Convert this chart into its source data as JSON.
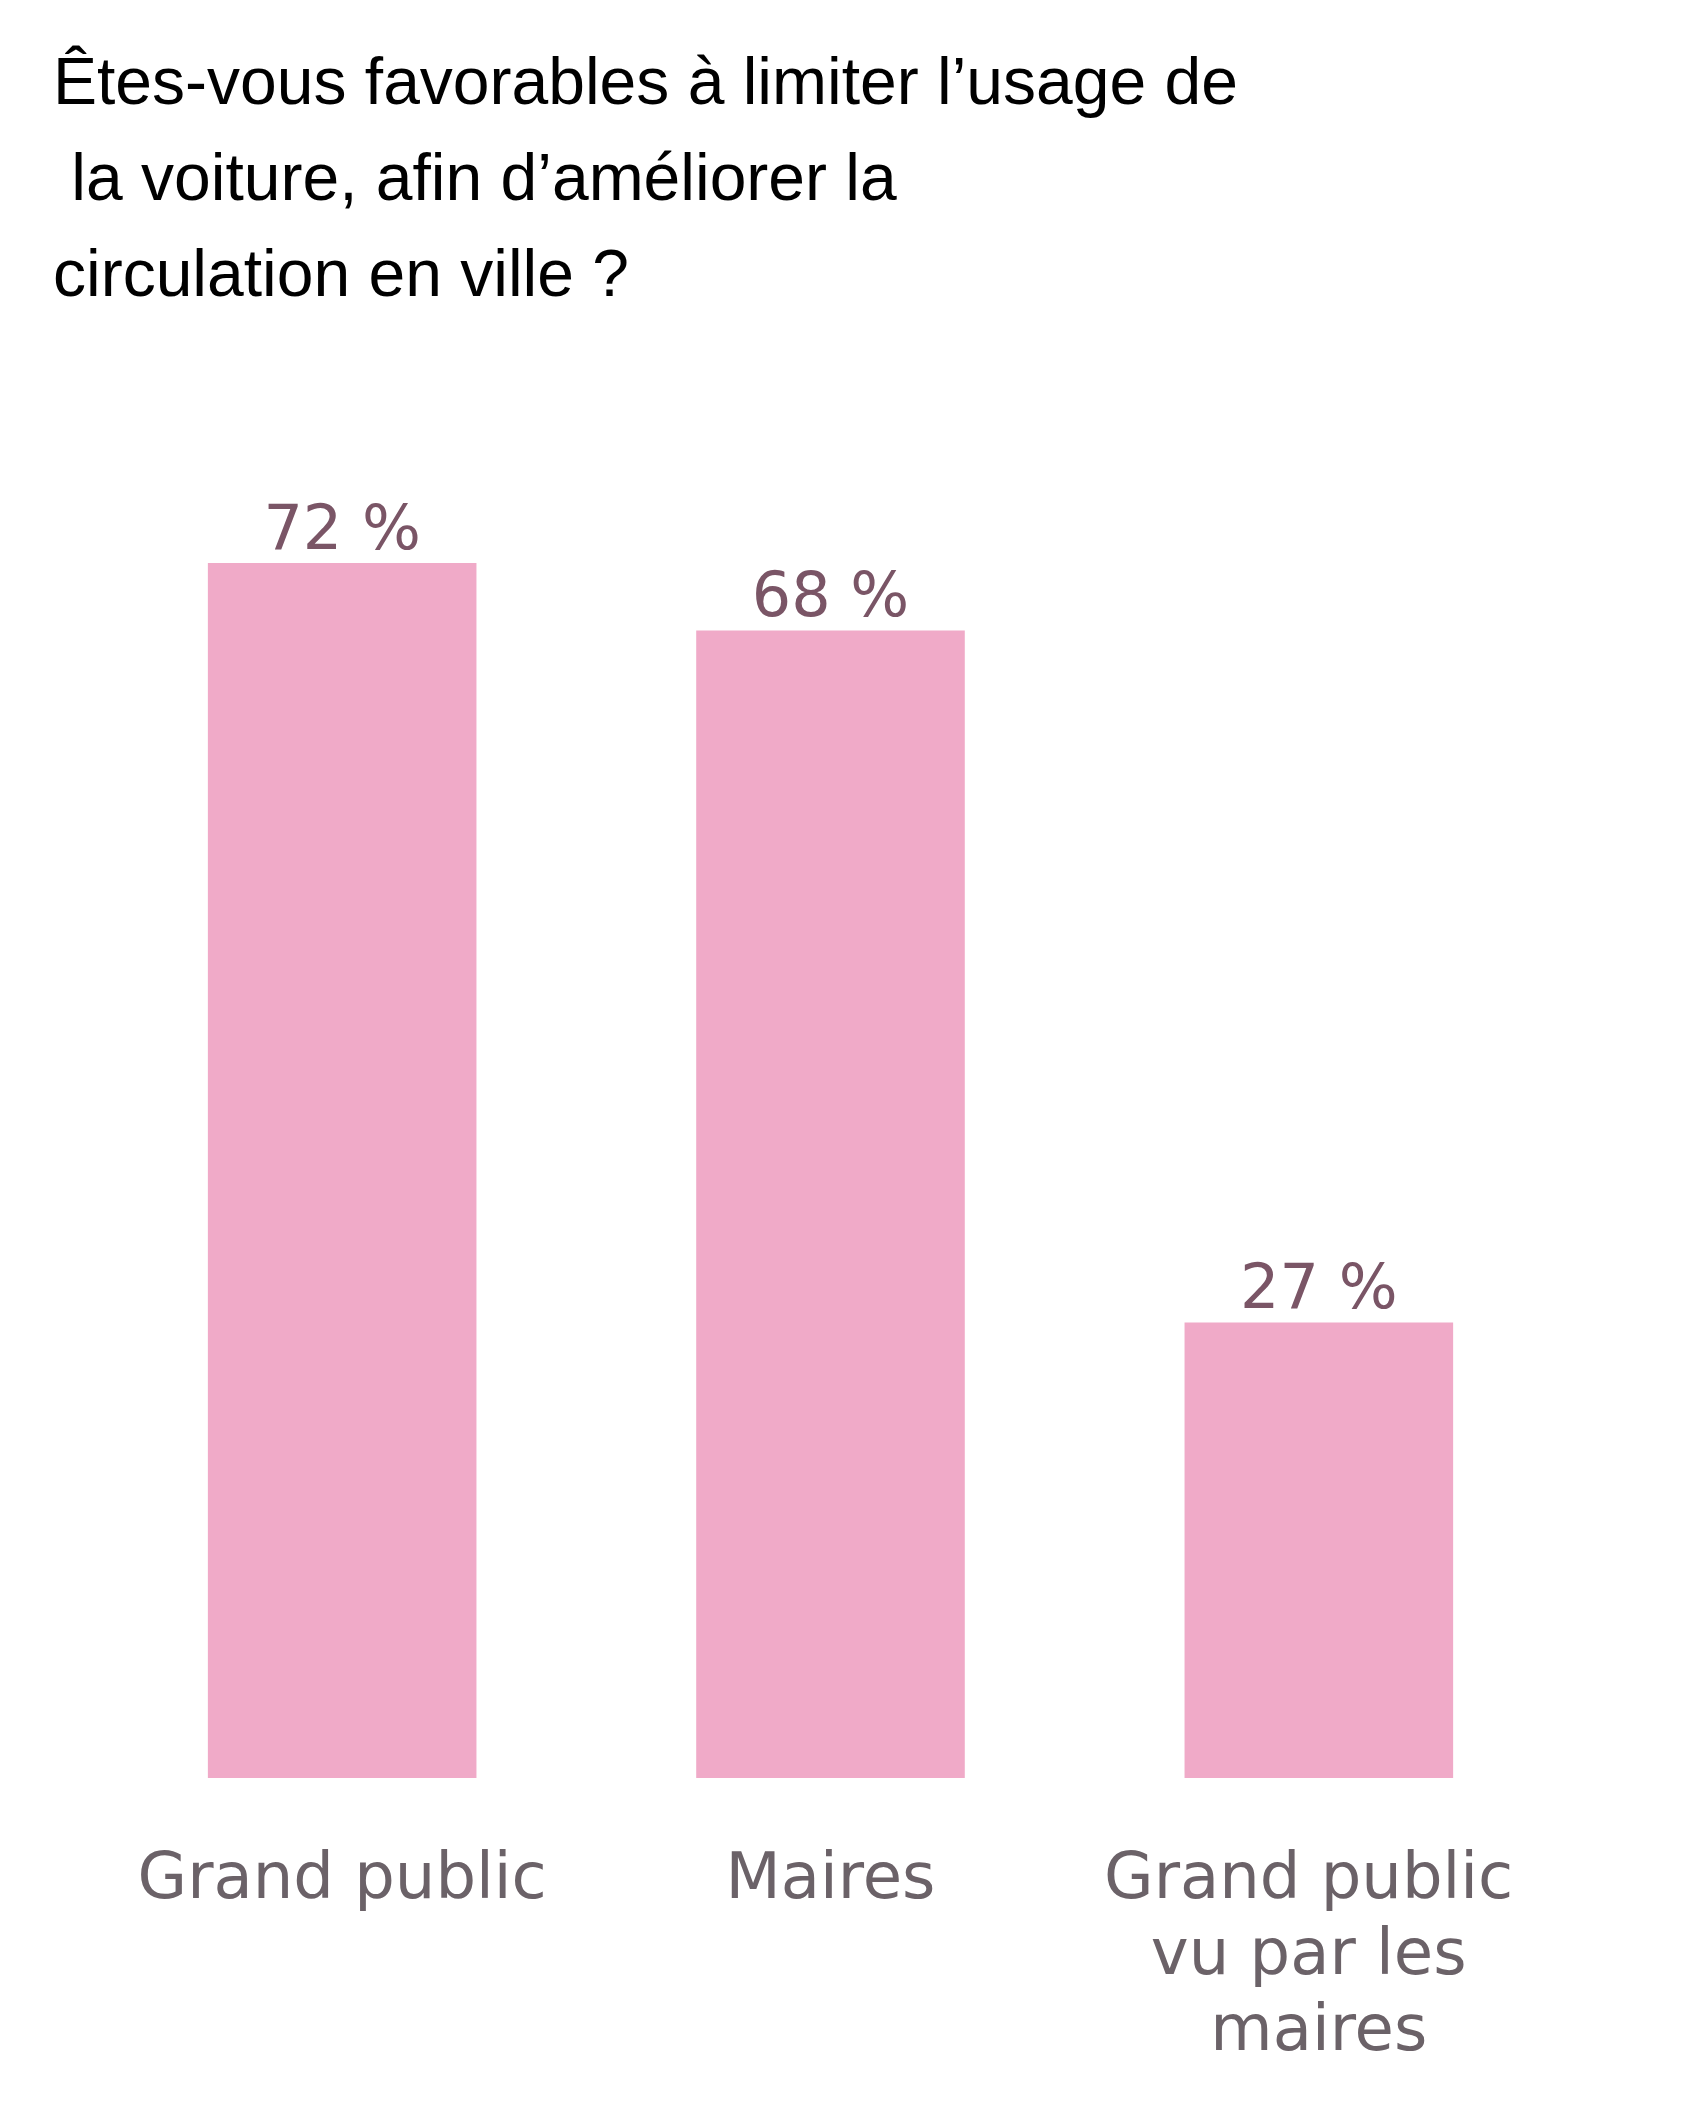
{
  "chart_data": {
    "type": "bar",
    "title": "Êtes-vous favorables à limiter l’usage de la voiture, afin d’améliorer la circulation en ville ?",
    "categories": [
      "Grand public",
      "Maires",
      "Grand public vu par les maires"
    ],
    "values": [
      72,
      68,
      27
    ],
    "value_labels": [
      "72 %",
      "68 %",
      "27 %"
    ],
    "color": "#f0aac8"
  }
}
